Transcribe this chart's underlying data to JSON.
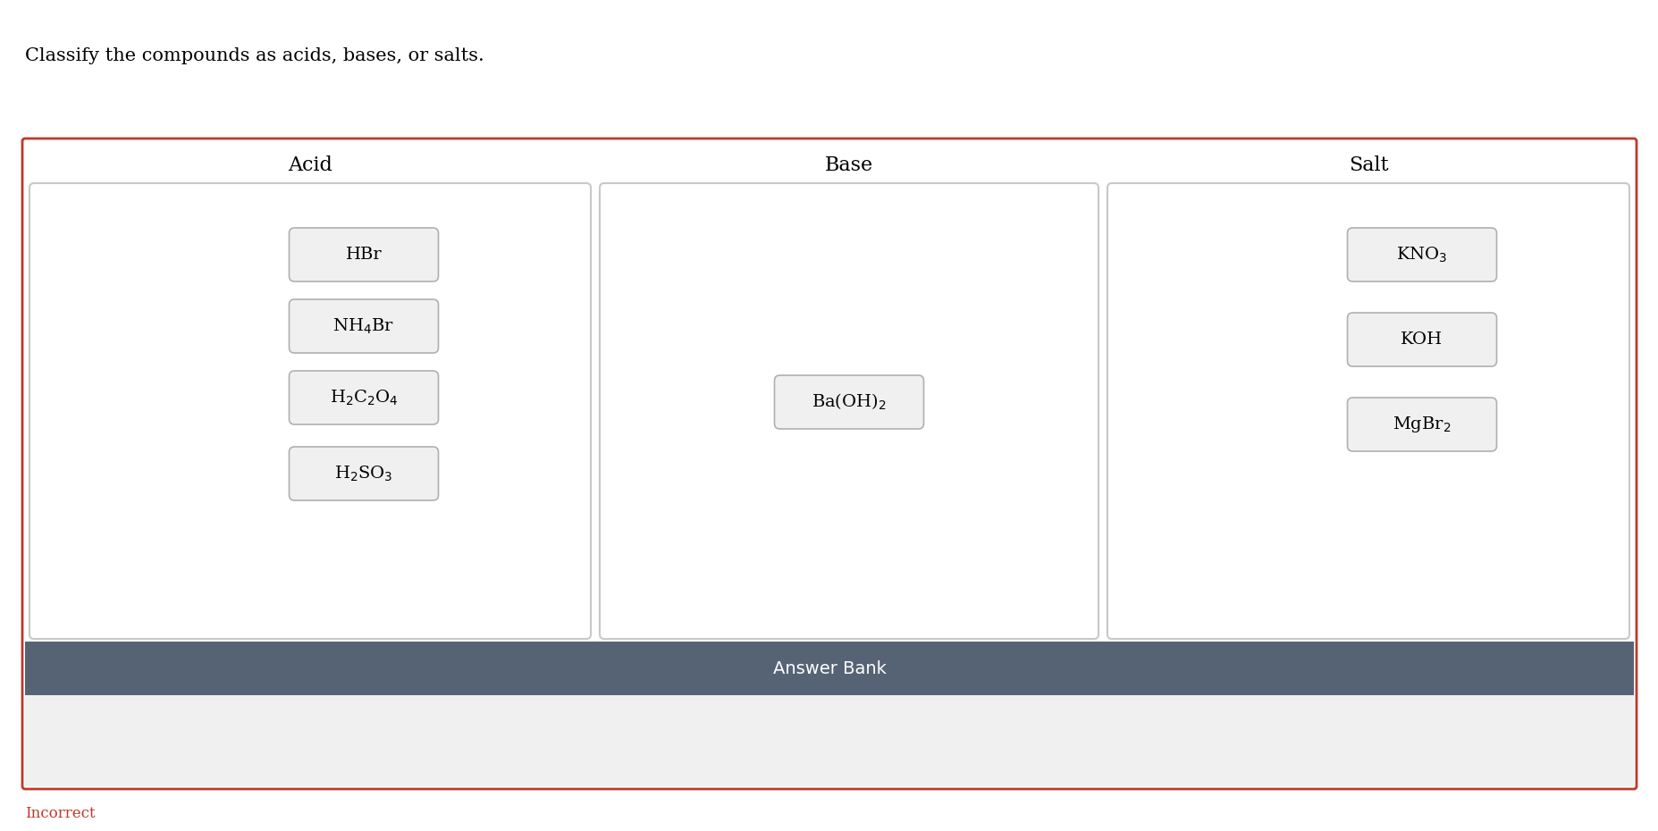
{
  "title": "Classify the compounds as acids, bases, or salts.",
  "title_fontsize": 15,
  "acid_label": "Acid",
  "base_label": "Base",
  "salt_label": "Salt",
  "acid_items": [
    "HBr",
    "NH$_4$Br",
    "H$_2$C$_2$O$_4$",
    "H$_2$SO$_3$"
  ],
  "base_items": [
    "Ba(OH)$_2$"
  ],
  "salt_items": [
    "KNO$_3$",
    "KOH",
    "MgBr$_2$"
  ],
  "answer_bank_label": "Answer Bank",
  "incorrect_label": "Incorrect",
  "outer_border_color": "#c0392b",
  "inner_box_bg": "#ffffff",
  "inner_box_border": "#c8c8c8",
  "item_box_bg": "#f0f0f0",
  "item_box_border": "#b0b0b0",
  "answer_bank_bg": "#566375",
  "answer_bank_fg": "#ffffff",
  "answer_bank_area_bg": "#f0f0f0",
  "main_bg": "#ffffff",
  "incorrect_color": "#c0392b",
  "col_label_fontsize": 16,
  "item_fontsize": 14,
  "answer_bank_fontsize": 14
}
